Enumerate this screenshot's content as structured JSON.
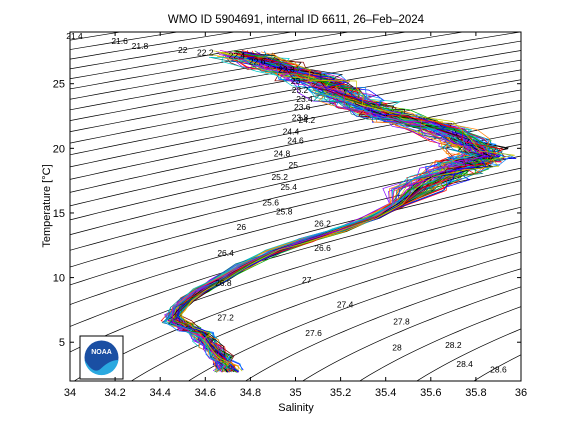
{
  "chart_data": {
    "type": "line",
    "title": "WMO ID 5904691, internal ID 6611, 26–Feb–2024",
    "xlabel": "Salinity",
    "ylabel": "Temperature [°C]",
    "xlim": [
      34,
      36
    ],
    "ylim": [
      2,
      29
    ],
    "xticks": [
      "34",
      "34.2",
      "34.4",
      "34.6",
      "34.8",
      "35",
      "35.2",
      "35.4",
      "35.6",
      "35.8",
      "36"
    ],
    "yticks": [
      "5",
      "10",
      "15",
      "20",
      "25"
    ],
    "grid": false,
    "legend": "none",
    "density_contour_labels": [
      {
        "text": "21.4",
        "s": 34.02,
        "t": 28.7
      },
      {
        "text": "21.6",
        "s": 34.22,
        "t": 28.3
      },
      {
        "text": "21.8",
        "s": 34.31,
        "t": 27.9
      },
      {
        "text": "22",
        "s": 34.5,
        "t": 27.6
      },
      {
        "text": "22.2",
        "s": 34.6,
        "t": 27.4
      },
      {
        "text": "22.4",
        "s": 34.74,
        "t": 27.2
      },
      {
        "text": "22.6",
        "s": 34.83,
        "t": 26.7
      },
      {
        "text": "22.8",
        "s": 34.96,
        "t": 26.1
      },
      {
        "text": "23",
        "s": 35.0,
        "t": 25.2
      },
      {
        "text": "23.2",
        "s": 35.02,
        "t": 24.5
      },
      {
        "text": "23.4",
        "s": 35.04,
        "t": 23.8
      },
      {
        "text": "23.6",
        "s": 35.03,
        "t": 23.2
      },
      {
        "text": "23.8",
        "s": 35.02,
        "t": 22.4
      },
      {
        "text": "24.2",
        "s": 35.05,
        "t": 22.2
      },
      {
        "text": "24.4",
        "s": 34.98,
        "t": 21.3
      },
      {
        "text": "24.6",
        "s": 35.0,
        "t": 20.6
      },
      {
        "text": "24.8",
        "s": 34.94,
        "t": 19.6
      },
      {
        "text": "25",
        "s": 34.99,
        "t": 18.7
      },
      {
        "text": "25.2",
        "s": 34.93,
        "t": 17.8
      },
      {
        "text": "25.4",
        "s": 34.97,
        "t": 17.0
      },
      {
        "text": "25.6",
        "s": 34.89,
        "t": 15.8
      },
      {
        "text": "25.8",
        "s": 34.95,
        "t": 15.1
      },
      {
        "text": "26",
        "s": 34.76,
        "t": 13.9
      },
      {
        "text": "26.2",
        "s": 35.12,
        "t": 14.2
      },
      {
        "text": "26.4",
        "s": 34.69,
        "t": 11.9
      },
      {
        "text": "26.6",
        "s": 35.12,
        "t": 12.3
      },
      {
        "text": "26.8",
        "s": 34.68,
        "t": 9.6
      },
      {
        "text": "27",
        "s": 35.05,
        "t": 9.8
      },
      {
        "text": "27.2",
        "s": 34.69,
        "t": 6.9
      },
      {
        "text": "27.4",
        "s": 35.22,
        "t": 7.9
      },
      {
        "text": "27.6",
        "s": 35.08,
        "t": 5.7
      },
      {
        "text": "27.8",
        "s": 35.47,
        "t": 6.6
      },
      {
        "text": "28",
        "s": 35.45,
        "t": 4.6
      },
      {
        "text": "28.2",
        "s": 35.7,
        "t": 4.8
      },
      {
        "text": "28.4",
        "s": 35.75,
        "t": 3.3
      },
      {
        "text": "28.6",
        "s": 35.9,
        "t": 2.9
      }
    ],
    "series": [
      {
        "s": [
          34.7,
          34.69,
          34.66,
          34.63,
          34.6,
          34.57,
          34.53,
          34.5,
          34.47,
          34.46,
          34.48,
          34.52,
          34.58,
          34.66,
          34.77,
          34.9,
          35.05,
          35.2,
          35.34,
          35.45,
          35.54,
          35.62,
          35.7,
          35.76,
          35.8,
          35.82,
          35.8,
          35.74,
          35.65,
          35.55,
          35.45,
          35.37,
          35.3,
          35.23,
          35.17,
          35.12,
          35.05,
          34.98,
          34.9,
          34.82,
          34.75
        ],
        "t": [
          2.8,
          3.2,
          3.9,
          4.6,
          5.2,
          5.7,
          6.0,
          6.3,
          6.6,
          7.0,
          7.6,
          8.3,
          9.0,
          9.8,
          10.9,
          12.0,
          12.9,
          13.7,
          14.6,
          15.6,
          16.8,
          17.7,
          18.3,
          18.8,
          19.1,
          19.4,
          19.9,
          20.6,
          21.3,
          21.9,
          22.3,
          22.7,
          23.3,
          23.9,
          24.5,
          25.0,
          25.5,
          26.0,
          26.4,
          26.9,
          27.3
        ]
      }
    ]
  },
  "logo": {
    "text": "NOAA"
  }
}
